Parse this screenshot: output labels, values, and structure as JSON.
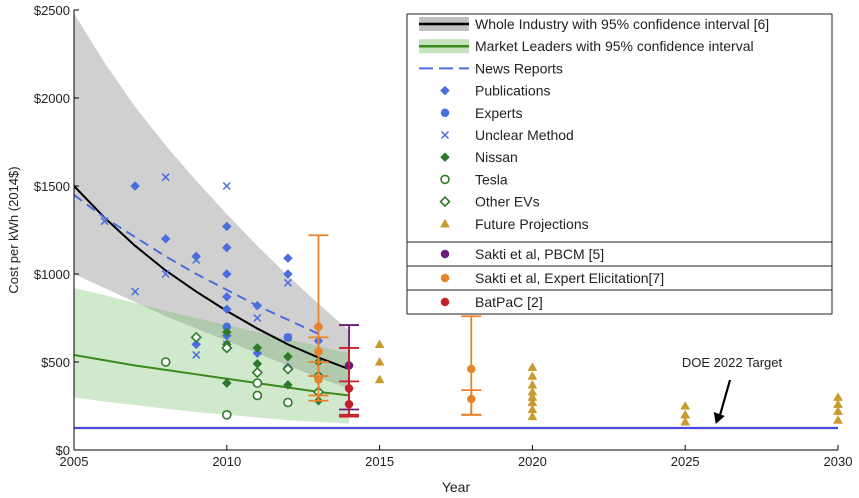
{
  "chart_data": {
    "type": "scatter",
    "xlabel": "Year",
    "ylabel": "Cost per kWh (2014$)",
    "xlim": [
      2005,
      2030
    ],
    "ylim": [
      0,
      2500
    ],
    "x_ticks": [
      "2005",
      "2010",
      "2015",
      "2020",
      "2025",
      "2030"
    ],
    "y_ticks": [
      "$0",
      "$500",
      "$1000",
      "$1500",
      "$2000",
      "$2500"
    ],
    "grid": false,
    "legend_position": "top-right",
    "legend": [
      {
        "label": "Whole Industry with 95% confidence interval [6]",
        "symbol": "band-line",
        "color": "#000000",
        "band": "#bfbfbf"
      },
      {
        "label": "Market Leaders with 95% confidence interval",
        "symbol": "band-line",
        "color": "#3a8a1c",
        "band": "#c5e3bf"
      },
      {
        "label": "News Reports",
        "symbol": "dash",
        "color": "#4a6ee0"
      },
      {
        "label": "Publications",
        "symbol": "diamond",
        "color": "#4a6ee0"
      },
      {
        "label": "Experts",
        "symbol": "circle",
        "color": "#4a6ee0"
      },
      {
        "label": "Unclear Method",
        "symbol": "cross",
        "color": "#4a6ee0"
      },
      {
        "label": "Nissan",
        "symbol": "diamond",
        "color": "#2f7a2a"
      },
      {
        "label": "Tesla",
        "symbol": "open-circle",
        "color": "#2f7a2a"
      },
      {
        "label": "Other EVs",
        "symbol": "open-diamond",
        "color": "#2f7a2a"
      },
      {
        "label": "Future Projections",
        "symbol": "triangle",
        "color": "#c99a2e"
      },
      {
        "label": "Sakti et al, PBCM [5]",
        "symbol": "circle",
        "color": "#6a1a7a"
      },
      {
        "label": "Sakti et al, Expert Elicitation[7]",
        "symbol": "circle",
        "color": "#e8832a"
      },
      {
        "label": "BatPaC [2]",
        "symbol": "circle",
        "color": "#c4202a"
      }
    ],
    "annotations": [
      {
        "text": "DOE 2022 Target",
        "x": 2026,
        "y": 125
      }
    ],
    "target_line": {
      "y": 125,
      "x": [
        2005,
        2030
      ],
      "color": "#4a4ae0"
    },
    "series": [
      {
        "name": "Whole Industry with 95% confidence interval [6]",
        "kind": "curve",
        "color": "#000000",
        "x": [
          2005,
          2006,
          2007,
          2008,
          2009,
          2010,
          2011,
          2012,
          2013,
          2014
        ],
        "y": [
          1500,
          1320,
          1160,
          1020,
          900,
          790,
          690,
          600,
          525,
          460
        ],
        "lower": [
          1000,
          920,
          840,
          760,
          690,
          620,
          550,
          480,
          410,
          350
        ],
        "upper": [
          2480,
          2200,
          1950,
          1730,
          1530,
          1340,
          1160,
          990,
          830,
          680
        ]
      },
      {
        "name": "Market Leaders with 95% confidence interval",
        "kind": "curve",
        "color": "#3a8a1c",
        "x": [
          2005,
          2006,
          2007,
          2008,
          2009,
          2010,
          2011,
          2012,
          2013,
          2014
        ],
        "y": [
          540,
          510,
          480,
          455,
          430,
          405,
          380,
          355,
          330,
          310
        ],
        "lower": [
          300,
          275,
          255,
          235,
          215,
          200,
          185,
          170,
          160,
          150
        ],
        "upper": [
          920,
          880,
          835,
          790,
          750,
          710,
          670,
          630,
          590,
          550
        ]
      },
      {
        "name": "News Reports",
        "kind": "dashed",
        "color": "#4a6ee0",
        "x": [
          2005,
          2006,
          2007,
          2008,
          2009,
          2010,
          2011,
          2012,
          2013
        ],
        "y": [
          1450,
          1320,
          1210,
          1100,
          1000,
          910,
          820,
          740,
          660
        ]
      },
      {
        "name": "Publications",
        "kind": "diamond",
        "color": "#4a6ee0",
        "x": [
          2007,
          2008,
          2009,
          2009,
          2010,
          2010,
          2010,
          2010,
          2010,
          2010,
          2011,
          2011,
          2012,
          2012,
          2012,
          2013,
          2013
        ],
        "y": [
          1500,
          1200,
          1100,
          600,
          1270,
          1150,
          1000,
          870,
          800,
          650,
          820,
          550,
          1090,
          1000,
          470,
          700,
          620
        ]
      },
      {
        "name": "Experts",
        "kind": "circle",
        "color": "#4a6ee0",
        "x": [
          2010,
          2010,
          2012
        ],
        "y": [
          700,
          580,
          640
        ]
      },
      {
        "name": "Unclear Method",
        "kind": "cross",
        "color": "#4a6ee0",
        "x": [
          2006,
          2007,
          2008,
          2008,
          2009,
          2009,
          2010,
          2010,
          2011,
          2012,
          2012
        ],
        "y": [
          1300,
          900,
          1550,
          1000,
          1080,
          540,
          1500,
          600,
          750,
          950,
          640
        ]
      },
      {
        "name": "Nissan",
        "kind": "diamond",
        "color": "#2f7a2a",
        "x": [
          2010,
          2010,
          2010,
          2011,
          2011,
          2012,
          2012,
          2013,
          2013
        ],
        "y": [
          670,
          600,
          380,
          580,
          490,
          530,
          370,
          280,
          500
        ]
      },
      {
        "name": "Tesla",
        "kind": "open-circle",
        "color": "#2f7a2a",
        "x": [
          2008,
          2010,
          2011,
          2011,
          2012
        ],
        "y": [
          500,
          200,
          380,
          310,
          270
        ]
      },
      {
        "name": "Other EVs",
        "kind": "open-diamond",
        "color": "#2f7a2a",
        "x": [
          2009,
          2010,
          2011,
          2012,
          2013,
          2013
        ],
        "y": [
          640,
          580,
          440,
          460,
          330,
          420
        ]
      },
      {
        "name": "Future Projections",
        "kind": "triangle",
        "color": "#c99a2e",
        "x": [
          2015,
          2015,
          2015,
          2020,
          2020,
          2020,
          2020,
          2020,
          2020,
          2020,
          2020,
          2025,
          2025,
          2025,
          2030,
          2030,
          2030,
          2030
        ],
        "y": [
          600,
          500,
          400,
          470,
          420,
          370,
          330,
          300,
          270,
          230,
          190,
          250,
          200,
          160,
          300,
          260,
          220,
          170
        ]
      },
      {
        "name": "Sakti et al, PBCM [5]",
        "kind": "errorbar",
        "color": "#6a1a7a",
        "points": [
          {
            "x": 2014,
            "y": 480,
            "low": 230,
            "high": 710
          }
        ]
      },
      {
        "name": "Sakti et al, Expert Elicitation[7]",
        "kind": "errorbar",
        "color": "#e8832a",
        "points": [
          {
            "x": 2013,
            "y": 700,
            "low": 280,
            "high": 1220
          },
          {
            "x": 2013,
            "y": 560,
            "low": 420,
            "high": 640
          },
          {
            "x": 2013,
            "y": 400,
            "low": 310,
            "high": 500
          },
          {
            "x": 2018,
            "y": 460,
            "low": 200,
            "high": 760
          },
          {
            "x": 2018,
            "y": 290,
            "low": 200,
            "high": 340
          }
        ]
      },
      {
        "name": "BatPaC [2]",
        "kind": "errorbar",
        "color": "#c4202a",
        "points": [
          {
            "x": 2014,
            "y": 350,
            "low": 200,
            "high": 580
          },
          {
            "x": 2014,
            "y": 260,
            "low": 190,
            "high": 390
          }
        ]
      }
    ]
  }
}
